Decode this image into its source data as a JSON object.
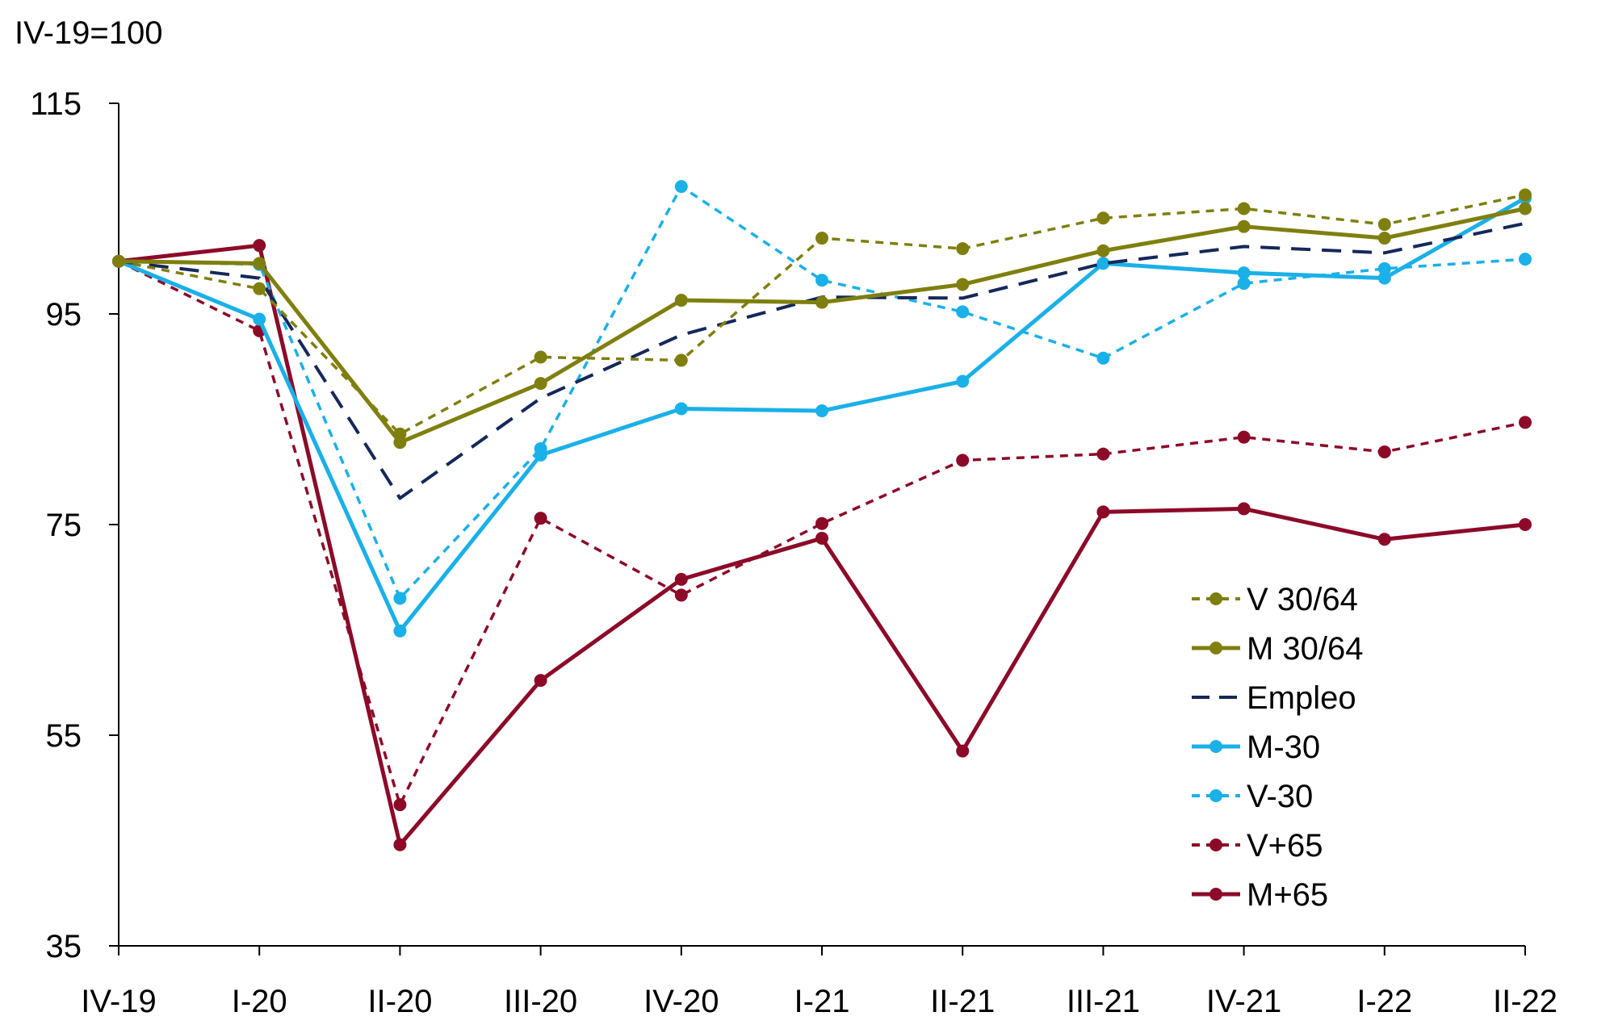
{
  "chart_data": {
    "type": "line",
    "title": "",
    "ylabel": "IV-19=100",
    "xlabel": "",
    "ylim": [
      35,
      115
    ],
    "yticks": [
      35,
      55,
      75,
      95,
      115
    ],
    "categories": [
      "IV-19",
      "I-20",
      "II-20",
      "III-20",
      "IV-20",
      "I-21",
      "II-21",
      "III-21",
      "IV-21",
      "I-22",
      "II-22"
    ],
    "legend_position": "lower-right",
    "series": [
      {
        "name": "V 30/64",
        "color": "#7f7f0f",
        "dash": "dashed",
        "markers": true,
        "values": [
          100.0,
          97.4,
          83.6,
          90.9,
          90.6,
          102.2,
          101.2,
          104.1,
          105.0,
          103.5,
          106.3
        ]
      },
      {
        "name": "M 30/64",
        "color": "#7f7f0f",
        "dash": "solid",
        "markers": true,
        "values": [
          100.0,
          99.8,
          82.8,
          88.4,
          96.3,
          96.1,
          97.8,
          101.0,
          103.3,
          102.2,
          105.0
        ]
      },
      {
        "name": "Empleo",
        "color": "#14285a",
        "dash": "longdash",
        "markers": false,
        "values": [
          100.0,
          98.4,
          77.5,
          87.0,
          93.0,
          96.6,
          96.5,
          99.8,
          101.4,
          100.8,
          103.6
        ]
      },
      {
        "name": "M-30",
        "color": "#1ab0e8",
        "dash": "solid",
        "markers": true,
        "values": [
          100.0,
          94.5,
          64.9,
          81.6,
          86.0,
          85.8,
          88.6,
          99.8,
          98.9,
          98.4,
          106.0
        ]
      },
      {
        "name": "V-30",
        "color": "#1ab0e8",
        "dash": "dashed",
        "markers": true,
        "values": [
          100.0,
          99.7,
          68.0,
          82.2,
          107.1,
          98.2,
          95.2,
          90.8,
          97.9,
          99.3,
          100.2
        ]
      },
      {
        "name": "V+65",
        "color": "#8c0a28",
        "dash": "dashed",
        "markers": true,
        "values": [
          100.0,
          93.4,
          48.4,
          75.6,
          68.3,
          75.1,
          81.1,
          81.7,
          83.3,
          81.9,
          84.7
        ]
      },
      {
        "name": "M+65",
        "color": "#8c0a28",
        "dash": "solid",
        "markers": true,
        "values": [
          100.0,
          101.5,
          44.6,
          60.2,
          69.8,
          73.7,
          53.5,
          76.2,
          76.5,
          73.6,
          75.0
        ]
      }
    ]
  }
}
